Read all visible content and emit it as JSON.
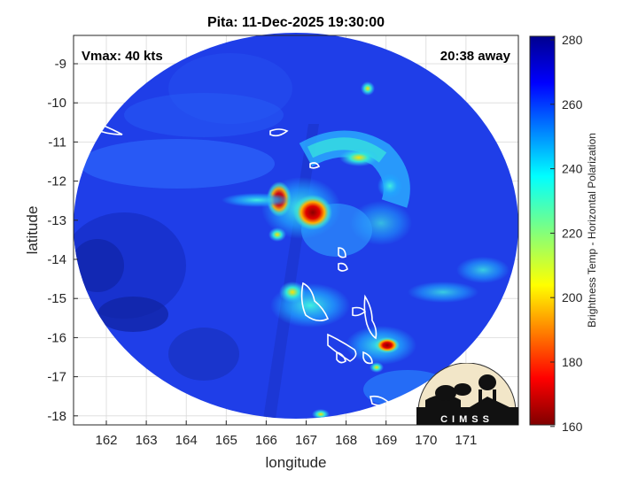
{
  "title": "Pita: 11-Dec-2025 19:30:00",
  "vmax_label": "Vmax: 40 kts",
  "time_away_label": "20:38 away",
  "xlabel": "longitude",
  "ylabel": "latitude",
  "x_ticks": [
    "162",
    "163",
    "164",
    "165",
    "166",
    "167",
    "168",
    "169",
    "170",
    "171"
  ],
  "y_ticks": [
    "-9",
    "-10",
    "-11",
    "-12",
    "-13",
    "-14",
    "-15",
    "-16",
    "-17",
    "-18"
  ],
  "colorbar": {
    "label": "Brightness Temp - Horizontal Polarization",
    "ticks": [
      "280",
      "260",
      "240",
      "220",
      "200",
      "180",
      "160"
    ],
    "range": [
      160,
      280
    ],
    "colormap": "jet"
  },
  "logo_text": "CIMSS",
  "colors": {
    "background_swath": "#1f3fe0",
    "hot_core": "#cc0000",
    "coastline": "#ffffff"
  }
}
